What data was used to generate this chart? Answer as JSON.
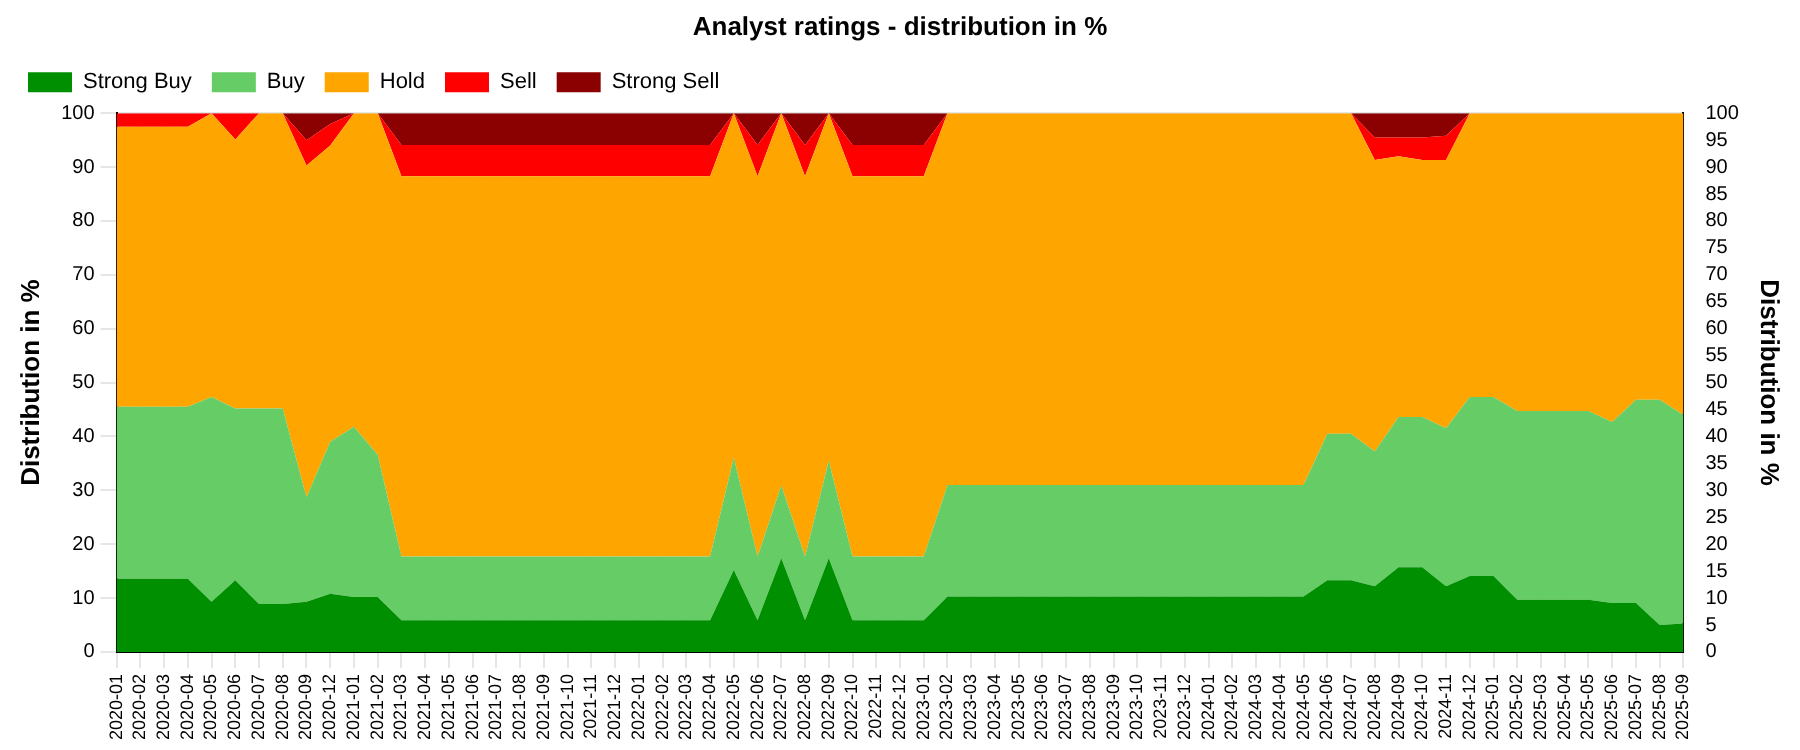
{
  "chart_data": {
    "type": "area",
    "stacked": true,
    "title": "Analyst ratings - distribution in %",
    "ylabel": "Distribution in %",
    "y2label": "Distribution in %",
    "categories": [
      "2020-01",
      "2020-02",
      "2020-03",
      "2020-04",
      "2020-05",
      "2020-06",
      "2020-07",
      "2020-08",
      "2020-09",
      "2020-12",
      "2021-01",
      "2021-02",
      "2021-03",
      "2021-04",
      "2021-05",
      "2021-06",
      "2021-07",
      "2021-08",
      "2021-09",
      "2021-10",
      "2021-11",
      "2021-12",
      "2022-01",
      "2022-02",
      "2022-03",
      "2022-04",
      "2022-05",
      "2022-06",
      "2022-07",
      "2022-08",
      "2022-09",
      "2022-10",
      "2022-11",
      "2022-12",
      "2023-01",
      "2023-02",
      "2023-03",
      "2023-04",
      "2023-05",
      "2023-06",
      "2023-07",
      "2023-08",
      "2023-09",
      "2023-10",
      "2023-11",
      "2023-12",
      "2024-01",
      "2024-02",
      "2024-03",
      "2024-04",
      "2024-05",
      "2024-06",
      "2024-07",
      "2024-08",
      "2024-09",
      "2024-10",
      "2024-11",
      "2024-12",
      "2025-01",
      "2025-02",
      "2025-03",
      "2025-04",
      "2025-05",
      "2025-06",
      "2025-07",
      "2025-08",
      "2025-09"
    ],
    "series": [
      {
        "name": "Strong Buy",
        "color": "#008f00",
        "values": [
          13.6,
          13.6,
          13.6,
          13.6,
          9.3,
          13.3,
          8.9,
          8.9,
          9.3,
          10.8,
          10.2,
          10.2,
          5.9,
          5.9,
          5.9,
          5.9,
          5.9,
          5.9,
          5.9,
          5.9,
          5.9,
          5.9,
          5.9,
          5.9,
          5.9,
          5.9,
          15.2,
          5.9,
          17.4,
          5.9,
          17.4,
          5.9,
          5.9,
          5.9,
          5.9,
          10.3,
          10.3,
          10.3,
          10.3,
          10.3,
          10.3,
          10.3,
          10.3,
          10.3,
          10.3,
          10.3,
          10.3,
          10.3,
          10.3,
          10.3,
          10.3,
          13.3,
          13.3,
          12.2,
          15.7,
          15.7,
          12.2,
          14.1,
          14.1,
          9.7,
          9.7,
          9.7,
          9.7,
          9.1,
          9.1,
          5.0,
          5.3
        ]
      },
      {
        "name": "Buy",
        "color": "#66cc66",
        "values": [
          31.9,
          31.9,
          31.9,
          31.9,
          38.0,
          31.9,
          36.3,
          36.3,
          19.4,
          28.2,
          31.6,
          26.4,
          11.8,
          11.8,
          11.8,
          11.8,
          11.8,
          11.8,
          11.8,
          11.8,
          11.8,
          11.8,
          11.8,
          11.8,
          11.8,
          11.8,
          20.9,
          11.8,
          13.5,
          11.8,
          18.1,
          11.8,
          11.8,
          11.8,
          11.8,
          20.7,
          20.7,
          20.7,
          20.7,
          20.7,
          20.7,
          20.7,
          20.7,
          20.7,
          20.7,
          20.7,
          20.7,
          20.7,
          20.7,
          20.7,
          20.7,
          27.2,
          27.2,
          25.0,
          27.9,
          27.9,
          29.3,
          33.2,
          33.2,
          35.0,
          35.0,
          35.0,
          35.0,
          33.6,
          37.7,
          41.8,
          38.7
        ]
      },
      {
        "name": "Hold",
        "color": "#ffa500",
        "values": [
          52.0,
          52.0,
          52.0,
          52.0,
          52.7,
          49.9,
          54.8,
          54.8,
          61.6,
          55.0,
          58.2,
          63.4,
          70.6,
          70.6,
          70.6,
          70.6,
          70.6,
          70.6,
          70.6,
          70.6,
          70.6,
          70.6,
          70.6,
          70.6,
          70.6,
          70.6,
          63.9,
          70.6,
          69.1,
          70.6,
          64.5,
          70.6,
          70.6,
          70.6,
          70.6,
          69.0,
          69.0,
          69.0,
          69.0,
          69.0,
          69.0,
          69.0,
          69.0,
          69.0,
          69.0,
          69.0,
          69.0,
          69.0,
          69.0,
          69.0,
          69.0,
          59.5,
          59.5,
          54.1,
          48.4,
          47.7,
          49.8,
          52.7,
          52.7,
          55.3,
          55.3,
          55.3,
          55.3,
          57.3,
          53.2,
          53.2,
          56.0
        ]
      },
      {
        "name": "Sell",
        "color": "#ff0000",
        "values": [
          2.5,
          2.5,
          2.5,
          2.5,
          0,
          4.9,
          0,
          0,
          4.7,
          4.0,
          0,
          0,
          5.8,
          5.8,
          5.8,
          5.8,
          5.8,
          5.8,
          5.8,
          5.8,
          5.8,
          5.8,
          5.8,
          5.8,
          5.8,
          5.8,
          0,
          5.8,
          0,
          5.8,
          0,
          5.8,
          5.8,
          5.8,
          5.8,
          0,
          0,
          0,
          0,
          0,
          0,
          0,
          0,
          0,
          0,
          0,
          0,
          0,
          0,
          0,
          0,
          0,
          0,
          4.2,
          3.5,
          4.2,
          4.5,
          0,
          0,
          0,
          0,
          0,
          0,
          0,
          0,
          0,
          0
        ]
      },
      {
        "name": "Strong Sell",
        "color": "#8b0000",
        "values": [
          0,
          0,
          0,
          0,
          0,
          0,
          0,
          0,
          5.0,
          2.0,
          0,
          0,
          5.9,
          5.9,
          5.9,
          5.9,
          5.9,
          5.9,
          5.9,
          5.9,
          5.9,
          5.9,
          5.9,
          5.9,
          5.9,
          5.9,
          0,
          5.9,
          0,
          5.9,
          0,
          5.9,
          5.9,
          5.9,
          5.9,
          0,
          0,
          0,
          0,
          0,
          0,
          0,
          0,
          0,
          0,
          0,
          0,
          0,
          0,
          0,
          0,
          0,
          0,
          4.5,
          4.5,
          4.5,
          4.2,
          0,
          0,
          0,
          0,
          0,
          0,
          0,
          0,
          0,
          0
        ]
      }
    ],
    "ylim": [
      0,
      100
    ],
    "yticks": [
      0,
      10,
      20,
      30,
      40,
      50,
      60,
      70,
      80,
      90,
      100
    ],
    "y2lim": [
      0,
      100
    ],
    "y2ticks": [
      0,
      5,
      10,
      15,
      20,
      25,
      30,
      35,
      40,
      45,
      50,
      55,
      60,
      65,
      70,
      75,
      80,
      85,
      90,
      95,
      100
    ],
    "grid": true,
    "legend": "top left",
    "marker": "none"
  }
}
